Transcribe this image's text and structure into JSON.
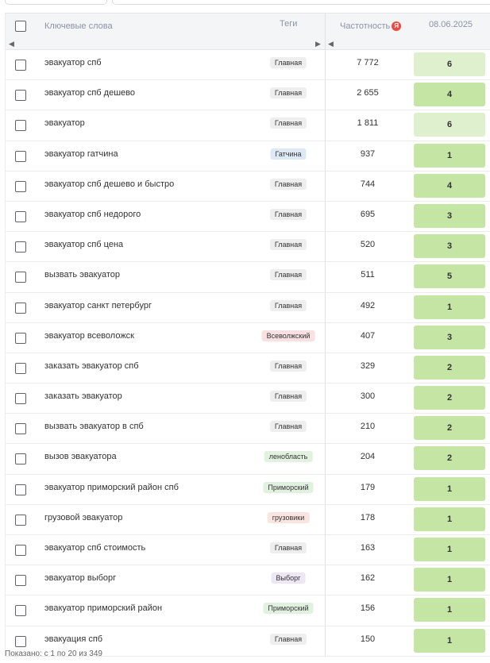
{
  "header": {
    "keywords": "Ключевые слова",
    "tags": "Теги",
    "frequency": "Частотность",
    "yandex_badge": "Я",
    "date": "08.06.2025"
  },
  "rows": [
    {
      "keyword": "эвакуатор спб",
      "tag": "Главная",
      "tag_style": "t-main",
      "freq": "7 772",
      "pos": "6",
      "pos_shade": "light"
    },
    {
      "keyword": "эвакуатор спб дешево",
      "tag": "Главная",
      "tag_style": "t-main",
      "freq": "2 655",
      "pos": "4",
      "pos_shade": "normal"
    },
    {
      "keyword": "эвакуатор",
      "tag": "Главная",
      "tag_style": "t-main",
      "freq": "1 811",
      "pos": "6",
      "pos_shade": "light"
    },
    {
      "keyword": "эвакуатор гатчина",
      "tag": "Гатчина",
      "tag_style": "t-gatchina",
      "freq": "937",
      "pos": "1",
      "pos_shade": "normal"
    },
    {
      "keyword": "эвакуатор спб дешево и быстро",
      "tag": "Главная",
      "tag_style": "t-main",
      "freq": "744",
      "pos": "4",
      "pos_shade": "normal"
    },
    {
      "keyword": "эвакуатор спб недорого",
      "tag": "Главная",
      "tag_style": "t-main",
      "freq": "695",
      "pos": "3",
      "pos_shade": "normal"
    },
    {
      "keyword": "эвакуатор спб цена",
      "tag": "Главная",
      "tag_style": "t-main",
      "freq": "520",
      "pos": "3",
      "pos_shade": "normal"
    },
    {
      "keyword": "вызвать эвакуатор",
      "tag": "Главная",
      "tag_style": "t-main",
      "freq": "511",
      "pos": "5",
      "pos_shade": "normal"
    },
    {
      "keyword": "эвакуатор санкт петербург",
      "tag": "Главная",
      "tag_style": "t-main",
      "freq": "492",
      "pos": "1",
      "pos_shade": "normal"
    },
    {
      "keyword": "эвакуатор всеволожск",
      "tag": "Всеволжский",
      "tag_style": "t-vsevolozhsk",
      "freq": "407",
      "pos": "3",
      "pos_shade": "normal"
    },
    {
      "keyword": "заказать эвакуатор спб",
      "tag": "Главная",
      "tag_style": "t-main",
      "freq": "329",
      "pos": "2",
      "pos_shade": "normal"
    },
    {
      "keyword": "заказать эвакуатор",
      "tag": "Главная",
      "tag_style": "t-main",
      "freq": "300",
      "pos": "2",
      "pos_shade": "normal"
    },
    {
      "keyword": "вызвать эвакуатор в спб",
      "tag": "Главная",
      "tag_style": "t-main",
      "freq": "210",
      "pos": "2",
      "pos_shade": "normal"
    },
    {
      "keyword": "вызов эвакуатора",
      "tag": "ленобласть",
      "tag_style": "t-lenobl",
      "freq": "204",
      "pos": "2",
      "pos_shade": "normal"
    },
    {
      "keyword": "эвакуатор приморский район спб",
      "tag": "Приморский",
      "tag_style": "t-primorsky",
      "freq": "179",
      "pos": "1",
      "pos_shade": "normal"
    },
    {
      "keyword": "грузовой эвакуатор",
      "tag": "грузовики",
      "tag_style": "t-gruz",
      "freq": "178",
      "pos": "1",
      "pos_shade": "normal"
    },
    {
      "keyword": "эвакуатор спб стоимость",
      "tag": "Главная",
      "tag_style": "t-main",
      "freq": "163",
      "pos": "1",
      "pos_shade": "normal"
    },
    {
      "keyword": "эвакуатор выборг",
      "tag": "Выборг",
      "tag_style": "t-vyborg",
      "freq": "162",
      "pos": "1",
      "pos_shade": "normal"
    },
    {
      "keyword": "эвакуатор приморский район",
      "tag": "Приморский",
      "tag_style": "t-primorsky",
      "freq": "156",
      "pos": "1",
      "pos_shade": "normal"
    },
    {
      "keyword": "эвакуация спб",
      "tag": "Главная",
      "tag_style": "t-main",
      "freq": "150",
      "pos": "1",
      "pos_shade": "normal"
    }
  ],
  "footer": {
    "text": "Показано: с 1 по 20 из 349"
  },
  "colors": {
    "position_normal": "#c5e5a5",
    "position_light": "#dff0cf",
    "yandex_badge": "#f04a3f"
  }
}
